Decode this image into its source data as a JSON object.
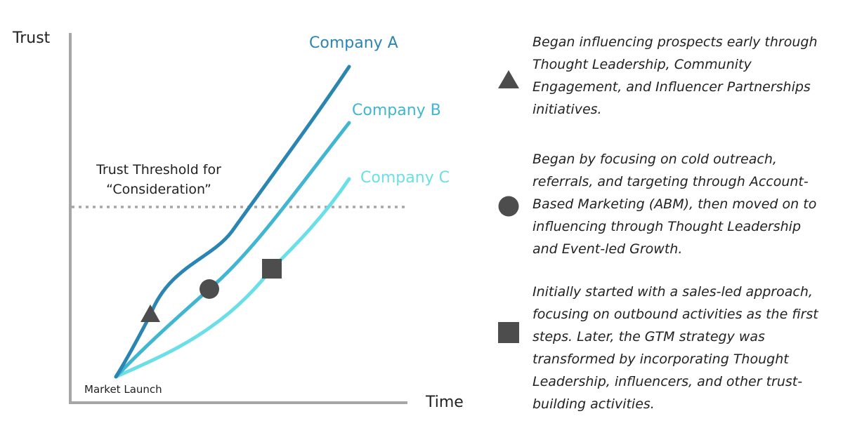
{
  "axes": {
    "y_label": "Trust",
    "x_label": "Time"
  },
  "threshold": {
    "line1": "Trust Threshold for",
    "line2": "“Consideration”"
  },
  "origin_label": "Market Launch",
  "colors": {
    "axis": "#a6a6a6",
    "threshold": "#a6a6a6",
    "company_a": "#2b85b2",
    "company_b": "#41b6d0",
    "company_c": "#6bdfe8",
    "marker": "#4d4d4d",
    "text": "#222222"
  },
  "series": [
    {
      "name": "Company A",
      "marker": "triangle"
    },
    {
      "name": "Company B",
      "marker": "circle"
    },
    {
      "name": "Company C",
      "marker": "square"
    }
  ],
  "legend": [
    {
      "marker_icon": "triangle-icon",
      "text": "Began influencing prospects early through Thought Leadership, Community Engagement, and Influencer Partnerships initiatives."
    },
    {
      "marker_icon": "circle-icon",
      "text": "Began by focusing on cold outreach, referrals, and targeting through Account-Based Marketing (ABM), then moved on to influencing through Thought Leadership and Event-led Growth."
    },
    {
      "marker_icon": "square-icon",
      "text": "Initially started with a sales-led approach, focusing on outbound activities as the first steps. Later, the GTM strategy was transformed by incorporating Thought Leadership, influencers, and other trust-building activities."
    }
  ]
}
